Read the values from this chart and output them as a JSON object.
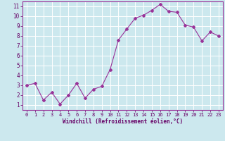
{
  "x": [
    0,
    1,
    2,
    3,
    4,
    5,
    6,
    7,
    8,
    9,
    10,
    11,
    12,
    13,
    14,
    15,
    16,
    17,
    18,
    19,
    20,
    21,
    22,
    23
  ],
  "y": [
    3.0,
    3.2,
    1.5,
    2.3,
    1.1,
    2.0,
    3.2,
    1.7,
    2.6,
    2.9,
    4.6,
    7.6,
    8.7,
    9.8,
    10.1,
    10.6,
    11.2,
    10.5,
    10.4,
    9.1,
    8.9,
    7.5,
    8.4,
    8.0
  ],
  "line_color": "#993399",
  "marker": "D",
  "marker_size": 2,
  "bg_color": "#cce8ee",
  "grid_color": "#b0d8e0",
  "xlabel": "Windchill (Refroidissement éolien,°C)",
  "xlabel_color": "#660066",
  "tick_color": "#660066",
  "xlim": [
    -0.5,
    23.5
  ],
  "ylim": [
    0.5,
    11.5
  ],
  "yticks": [
    1,
    2,
    3,
    4,
    5,
    6,
    7,
    8,
    9,
    10,
    11
  ],
  "xticks": [
    0,
    1,
    2,
    3,
    4,
    5,
    6,
    7,
    8,
    9,
    10,
    11,
    12,
    13,
    14,
    15,
    16,
    17,
    18,
    19,
    20,
    21,
    22,
    23
  ]
}
